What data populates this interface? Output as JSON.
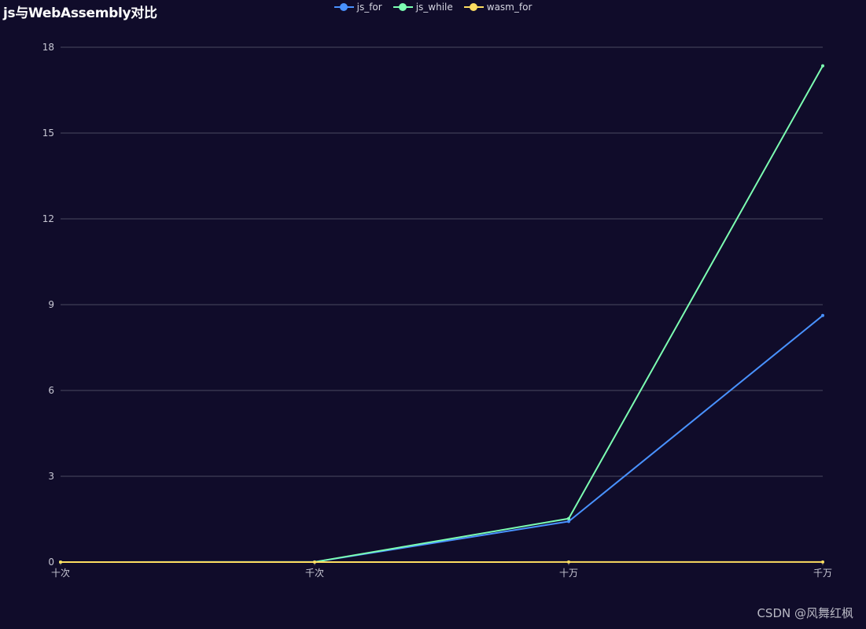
{
  "colors": {
    "background": "#100c2a",
    "grid": "#4a4a60",
    "axis_label": "#c8c8d4"
  },
  "chart_data": {
    "type": "line",
    "title": "js与WebAssembly对比",
    "categories": [
      "十次",
      "千次",
      "十万",
      "千万"
    ],
    "ylim": [
      0,
      18
    ],
    "yticks": [
      0,
      3,
      6,
      9,
      12,
      15,
      18
    ],
    "grid": true,
    "legend_position": "top-center",
    "series": [
      {
        "name": "js_for",
        "color": "#4992ff",
        "values": [
          0,
          0.005,
          1.42,
          8.62
        ]
      },
      {
        "name": "js_while",
        "color": "#7cffb2",
        "values": [
          0,
          0.005,
          1.52,
          17.35
        ]
      },
      {
        "name": "wasm_for",
        "color": "#fddd60",
        "values": [
          0,
          0,
          0.002,
          0.003
        ]
      }
    ]
  },
  "watermark": "CSDN @风舞红枫"
}
